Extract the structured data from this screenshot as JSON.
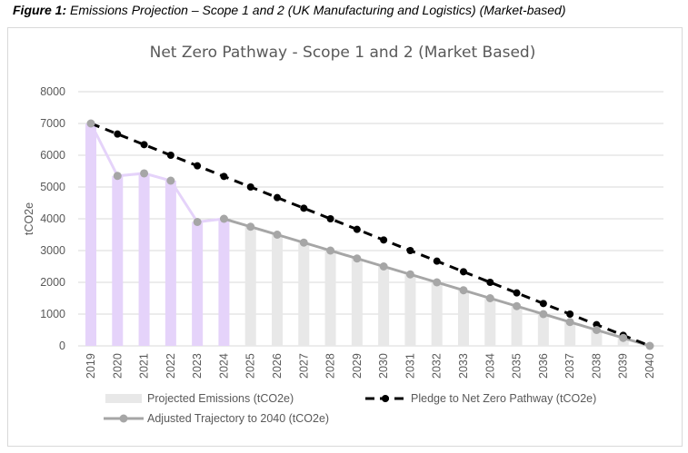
{
  "caption": {
    "label": "Figure 1:",
    "text": " Emissions Projection – Scope 1 and 2 (UK Manufacturing and Logistics) (Market-based)"
  },
  "chart_data": {
    "type": "bar",
    "title": "Net Zero Pathway - Scope 1 and 2 (Market Based)",
    "xlabel": "",
    "ylabel": "tCO2e",
    "ylim": [
      0,
      8000
    ],
    "yticks": [
      0,
      1000,
      2000,
      3000,
      4000,
      5000,
      6000,
      7000,
      8000
    ],
    "grid": true,
    "legend_position": "bottom",
    "categories": [
      "2019",
      "2020",
      "2021",
      "2022",
      "2023",
      "2024",
      "2025",
      "2026",
      "2027",
      "2028",
      "2029",
      "2030",
      "2031",
      "2032",
      "2033",
      "2034",
      "2035",
      "2036",
      "2037",
      "2038",
      "2039",
      "2040"
    ],
    "series": [
      {
        "name": "Projected Emissions (tCO2e)",
        "kind": "bar",
        "color": "#e8e8e8",
        "actual_color": "#e5d3fa",
        "actual_count": 6,
        "values": [
          7000,
          5350,
          5430,
          5200,
          3900,
          4000,
          3750,
          3500,
          3250,
          3000,
          2750,
          2500,
          2250,
          2000,
          1750,
          1500,
          1250,
          1000,
          750,
          500,
          250,
          0
        ]
      },
      {
        "name": "Pledge to Net Zero Pathway (tCO2e)",
        "kind": "line-dashed",
        "color": "#000000",
        "values": [
          7000,
          6667,
          6333,
          6000,
          5667,
          5333,
          5000,
          4667,
          4333,
          4000,
          3667,
          3333,
          3000,
          2667,
          2333,
          2000,
          1667,
          1333,
          1000,
          667,
          333,
          0
        ]
      },
      {
        "name": "Adjusted Trajectory to 2040 (tCO2e)",
        "kind": "line",
        "color": "#a6a6a6",
        "actual_color": "#e5d3fa",
        "values": [
          7000,
          5350,
          5430,
          5200,
          3900,
          4000,
          3750,
          3500,
          3250,
          3000,
          2750,
          2500,
          2250,
          2000,
          1750,
          1500,
          1250,
          1000,
          750,
          500,
          250,
          0
        ]
      }
    ]
  }
}
